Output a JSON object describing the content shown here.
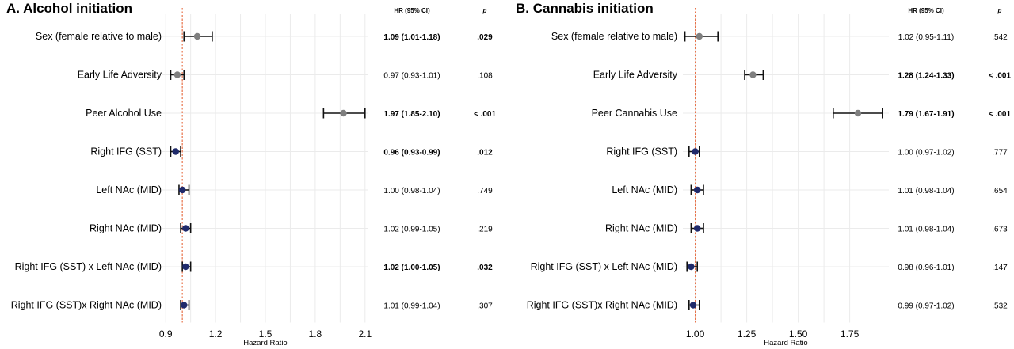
{
  "chart_data": [
    {
      "type": "forest",
      "panel_label": "A.",
      "title": "Alcohol initiation",
      "xlabel": "Hazard Ratio",
      "xlim": [
        0.88,
        2.12
      ],
      "xticks": [
        "0.9",
        "1.2",
        "1.5",
        "1.8",
        "2.1"
      ],
      "xtick_values": [
        0.9,
        1.2,
        1.5,
        1.8,
        2.1
      ],
      "reference_line": 1.0,
      "col_headers": {
        "hr": "HR (95% CI)",
        "p": "p"
      },
      "rows": [
        {
          "label": "Sex (female relative to male)",
          "hr": 1.09,
          "lo": 1.01,
          "hi": 1.18,
          "hr_text": "1.09 (1.01-1.18)",
          "p_text": ".029",
          "significant": true,
          "kind": "covariate"
        },
        {
          "label": "Early Life Adversity",
          "hr": 0.97,
          "lo": 0.93,
          "hi": 1.01,
          "hr_text": "0.97 (0.93-1.01)",
          "p_text": ".108",
          "significant": false,
          "kind": "covariate"
        },
        {
          "label": "Peer Alcohol Use",
          "hr": 1.97,
          "lo": 1.85,
          "hi": 2.1,
          "hr_text": "1.97 (1.85-2.10)",
          "p_text": "< .001",
          "significant": true,
          "kind": "covariate"
        },
        {
          "label": "Right IFG (SST)",
          "hr": 0.96,
          "lo": 0.93,
          "hi": 0.99,
          "hr_text": "0.96 (0.93-0.99)",
          "p_text": ".012",
          "significant": true,
          "kind": "brain"
        },
        {
          "label": "Left NAc (MID)",
          "hr": 1.0,
          "lo": 0.98,
          "hi": 1.04,
          "hr_text": "1.00 (0.98-1.04)",
          "p_text": ".749",
          "significant": false,
          "kind": "brain"
        },
        {
          "label": "Right NAc (MID)",
          "hr": 1.02,
          "lo": 0.99,
          "hi": 1.05,
          "hr_text": "1.02 (0.99-1.05)",
          "p_text": ".219",
          "significant": false,
          "kind": "brain"
        },
        {
          "label": "Right IFG (SST) x Left NAc (MID)",
          "hr": 1.02,
          "lo": 1.0,
          "hi": 1.05,
          "hr_text": "1.02 (1.00-1.05)",
          "p_text": ".032",
          "significant": true,
          "kind": "brain"
        },
        {
          "label": "Right IFG (SST)x Right NAc (MID)",
          "hr": 1.01,
          "lo": 0.99,
          "hi": 1.04,
          "hr_text": "1.01 (0.99-1.04)",
          "p_text": ".307",
          "significant": false,
          "kind": "brain"
        }
      ]
    },
    {
      "type": "forest",
      "panel_label": "B.",
      "title": "Cannabis initiation",
      "xlabel": "Hazard Ratio",
      "xlim": [
        0.94,
        1.94
      ],
      "xticks": [
        "1.00",
        "1.25",
        "1.50",
        "1.75"
      ],
      "xtick_values": [
        1.0,
        1.25,
        1.5,
        1.75
      ],
      "reference_line": 1.0,
      "col_headers": {
        "hr": "HR (95% CI)",
        "p": "p"
      },
      "rows": [
        {
          "label": "Sex (female relative to male)",
          "hr": 1.02,
          "lo": 0.95,
          "hi": 1.11,
          "hr_text": "1.02 (0.95-1.11)",
          "p_text": ".542",
          "significant": false,
          "kind": "covariate"
        },
        {
          "label": "Early Life Adversity",
          "hr": 1.28,
          "lo": 1.24,
          "hi": 1.33,
          "hr_text": "1.28 (1.24-1.33)",
          "p_text": "< .001",
          "significant": true,
          "kind": "covariate"
        },
        {
          "label": "Peer Cannabis Use",
          "hr": 1.79,
          "lo": 1.67,
          "hi": 1.91,
          "hr_text": "1.79 (1.67-1.91)",
          "p_text": "< .001",
          "significant": true,
          "kind": "covariate"
        },
        {
          "label": "Right IFG (SST)",
          "hr": 1.0,
          "lo": 0.97,
          "hi": 1.02,
          "hr_text": "1.00 (0.97-1.02)",
          "p_text": ".777",
          "significant": false,
          "kind": "brain"
        },
        {
          "label": "Left NAc (MID)",
          "hr": 1.01,
          "lo": 0.98,
          "hi": 1.04,
          "hr_text": "1.01 (0.98-1.04)",
          "p_text": ".654",
          "significant": false,
          "kind": "brain"
        },
        {
          "label": "Right NAc (MID)",
          "hr": 1.01,
          "lo": 0.98,
          "hi": 1.04,
          "hr_text": "1.01 (0.98-1.04)",
          "p_text": ".673",
          "significant": false,
          "kind": "brain"
        },
        {
          "label": "Right IFG (SST) x Left NAc (MID)",
          "hr": 0.98,
          "lo": 0.96,
          "hi": 1.01,
          "hr_text": "0.98 (0.96-1.01)",
          "p_text": ".147",
          "significant": false,
          "kind": "brain"
        },
        {
          "label": "Right IFG (SST)x Right NAc (MID)",
          "hr": 0.99,
          "lo": 0.97,
          "hi": 1.02,
          "hr_text": "0.99 (0.97-1.02)",
          "p_text": ".532",
          "significant": false,
          "kind": "brain"
        }
      ]
    }
  ],
  "colors": {
    "covariate_point": "#7f7f7f",
    "brain_point": "#1f2a6b",
    "error_bar": "#111111",
    "reference_line": "#e8734a",
    "grid": "#ebebeb"
  }
}
